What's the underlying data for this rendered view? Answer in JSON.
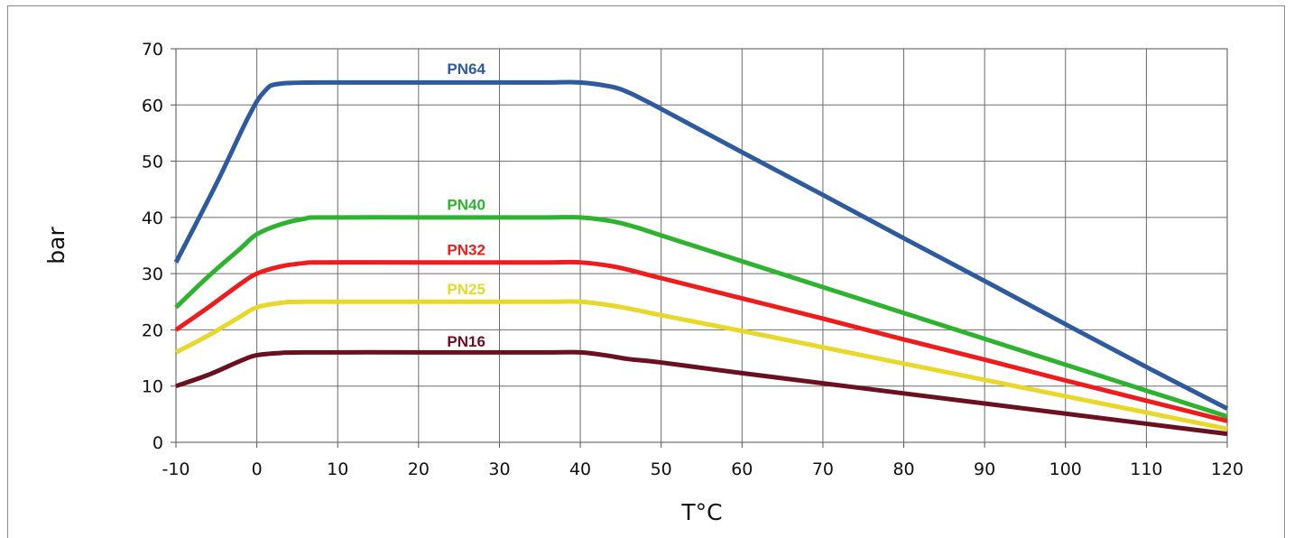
{
  "chart_data": {
    "type": "line",
    "title": "",
    "xlabel": "T°C",
    "ylabel": "bar",
    "xlim": [
      -10,
      120
    ],
    "ylim": [
      0,
      70
    ],
    "xticks": [
      -10,
      0,
      10,
      20,
      30,
      40,
      50,
      60,
      70,
      80,
      90,
      100,
      110,
      120
    ],
    "yticks": [
      0,
      10,
      20,
      30,
      40,
      50,
      60,
      70
    ],
    "x_tick_labels": [
      "-10",
      "0",
      "10",
      "20",
      "30",
      "40",
      "50",
      "60",
      "70",
      "80",
      "90",
      "100",
      "110",
      "120"
    ],
    "y_tick_labels": [
      "0",
      "10",
      "20",
      "30",
      "40",
      "50",
      "60",
      "70"
    ],
    "grid": true,
    "legend": "inline labels above each curve",
    "series": [
      {
        "name": "PN64",
        "color": "#2e5aa0",
        "label_at": [
          25,
          66.5
        ],
        "points": [
          [
            -10,
            32
          ],
          [
            -5,
            46
          ],
          [
            -1,
            58
          ],
          [
            1,
            62.5
          ],
          [
            3,
            63.8
          ],
          [
            10,
            64
          ],
          [
            20,
            64
          ],
          [
            30,
            64
          ],
          [
            36,
            64
          ],
          [
            40,
            64
          ],
          [
            44,
            63.2
          ],
          [
            46,
            62.2
          ],
          [
            48,
            60.8
          ],
          [
            50,
            59.3
          ],
          [
            60,
            51.6
          ],
          [
            70,
            44
          ],
          [
            80,
            36.3
          ],
          [
            90,
            28.7
          ],
          [
            100,
            21
          ],
          [
            110,
            13.4
          ],
          [
            120,
            6
          ]
        ]
      },
      {
        "name": "PN40",
        "color": "#2db32d",
        "label_at": [
          25,
          42.3
        ],
        "points": [
          [
            -10,
            24
          ],
          [
            -6,
            29.5
          ],
          [
            -2,
            34.5
          ],
          [
            0,
            37
          ],
          [
            3,
            38.8
          ],
          [
            6,
            39.8
          ],
          [
            8,
            40
          ],
          [
            20,
            40
          ],
          [
            30,
            40
          ],
          [
            36,
            40
          ],
          [
            40,
            40
          ],
          [
            44,
            39.3
          ],
          [
            47,
            38.2
          ],
          [
            50,
            36.8
          ],
          [
            60,
            32.2
          ],
          [
            70,
            27.6
          ],
          [
            80,
            23
          ],
          [
            90,
            18.4
          ],
          [
            100,
            13.8
          ],
          [
            110,
            9.2
          ],
          [
            120,
            4.6
          ]
        ]
      },
      {
        "name": "PN32",
        "color": "#ee1c1c",
        "label_at": [
          25,
          34.3
        ],
        "points": [
          [
            -10,
            20
          ],
          [
            -6,
            24
          ],
          [
            -2,
            28.2
          ],
          [
            0,
            30
          ],
          [
            3,
            31.3
          ],
          [
            6,
            31.9
          ],
          [
            8,
            32
          ],
          [
            20,
            32
          ],
          [
            30,
            32
          ],
          [
            36,
            32
          ],
          [
            40,
            32
          ],
          [
            44,
            31.3
          ],
          [
            47,
            30.3
          ],
          [
            50,
            29.2
          ],
          [
            60,
            25.6
          ],
          [
            70,
            22
          ],
          [
            80,
            18.3
          ],
          [
            90,
            14.7
          ],
          [
            100,
            11
          ],
          [
            110,
            7.4
          ],
          [
            120,
            3.8
          ]
        ]
      },
      {
        "name": "PN25",
        "color": "#e8d82a",
        "label_at": [
          25,
          27.3
        ],
        "points": [
          [
            -10,
            16
          ],
          [
            -6,
            19
          ],
          [
            -2,
            22.4
          ],
          [
            0,
            24
          ],
          [
            3,
            24.8
          ],
          [
            6,
            25
          ],
          [
            20,
            25
          ],
          [
            30,
            25
          ],
          [
            36,
            25
          ],
          [
            40,
            25
          ],
          [
            44,
            24.3
          ],
          [
            47,
            23.5
          ],
          [
            50,
            22.6
          ],
          [
            60,
            19.8
          ],
          [
            70,
            16.9
          ],
          [
            80,
            14
          ],
          [
            90,
            11.1
          ],
          [
            100,
            8.2
          ],
          [
            110,
            5.3
          ],
          [
            120,
            2.4
          ]
        ]
      },
      {
        "name": "PN16",
        "color": "#6a1020",
        "label_at": [
          25,
          18
        ],
        "points": [
          [
            -10,
            10
          ],
          [
            -6,
            12
          ],
          [
            -2,
            14.5
          ],
          [
            0,
            15.5
          ],
          [
            3,
            15.9
          ],
          [
            6,
            16
          ],
          [
            20,
            16
          ],
          [
            30,
            16
          ],
          [
            36,
            16
          ],
          [
            40,
            16
          ],
          [
            43,
            15.5
          ],
          [
            46,
            14.8
          ],
          [
            50,
            14.2
          ],
          [
            60,
            12.3
          ],
          [
            70,
            10.5
          ],
          [
            80,
            8.7
          ],
          [
            90,
            6.9
          ],
          [
            100,
            5.1
          ],
          [
            110,
            3.3
          ],
          [
            120,
            1.5
          ]
        ]
      }
    ]
  }
}
